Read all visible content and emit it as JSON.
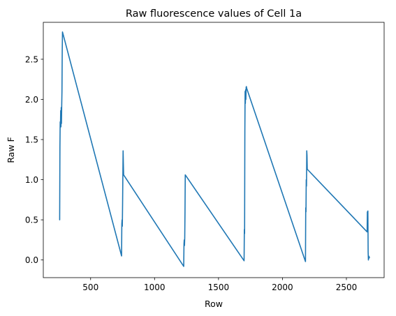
{
  "chart_data": {
    "type": "line",
    "title": "Raw fluorescence values of Cell 1a",
    "xlabel": "Row",
    "ylabel": "Raw F",
    "xlim": [
      130,
      2795
    ],
    "ylim": [
      -0.22,
      2.96
    ],
    "x_ticks": [
      500,
      1000,
      1500,
      2000,
      2500
    ],
    "y_ticks": [
      0.0,
      0.5,
      1.0,
      1.5,
      2.0,
      2.5
    ],
    "x_tick_labels": [
      "500",
      "1000",
      "1500",
      "2000",
      "2500"
    ],
    "y_tick_labels": [
      "0.0",
      "0.5",
      "1.0",
      "1.5",
      "2.0",
      "2.5"
    ],
    "grid": false,
    "series": [
      {
        "color": "#1f77b4",
        "x": [
          258,
          260,
          262,
          264,
          266,
          268,
          270,
          272,
          274,
          276,
          278,
          280,
          742,
          744,
          746,
          748,
          750,
          752,
          754,
          756,
          758,
          1228,
          1230,
          1232,
          1234,
          1236,
          1238,
          1240,
          1700,
          1702,
          1704,
          1706,
          1708,
          1710,
          1712,
          1714,
          1716,
          1718,
          1720,
          2180,
          2182,
          2184,
          2186,
          2188,
          2190,
          2192,
          2194,
          2662,
          2664,
          2666,
          2668,
          2670,
          2672,
          2674,
          2676,
          2678,
          2680
        ],
        "y": [
          0.5,
          1.4,
          1.72,
          1.65,
          1.86,
          1.66,
          1.9,
          1.7,
          1.92,
          2.1,
          2.6,
          2.84,
          0.05,
          0.45,
          0.5,
          0.42,
          0.7,
          1.05,
          1.36,
          1.2,
          1.06,
          -0.08,
          0.2,
          0.25,
          0.18,
          0.28,
          0.6,
          1.06,
          -0.01,
          0.38,
          0.33,
          1.6,
          2.1,
          1.95,
          2.12,
          2.0,
          2.15,
          2.16,
          2.14,
          -0.02,
          0.65,
          0.6,
          1.0,
          0.92,
          1.36,
          1.3,
          1.13,
          0.35,
          0.6,
          0.55,
          0.61,
          0.1,
          0.0,
          0.05,
          0.02,
          0.04,
          0.03
        ]
      }
    ]
  }
}
